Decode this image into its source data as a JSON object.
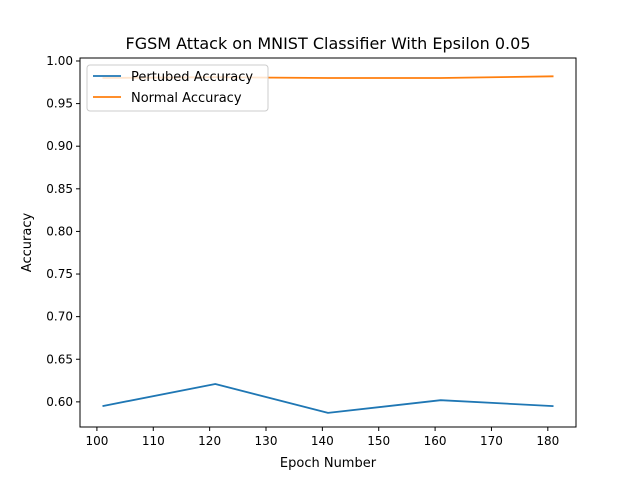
{
  "chart_data": {
    "type": "line",
    "title": "FGSM Attack on MNIST Classifier With Epsilon 0.05",
    "xlabel": "Epoch Number",
    "ylabel": "Accuracy",
    "xlim": [
      97,
      185
    ],
    "ylim": [
      0.5705,
      1.0035
    ],
    "xticks": [
      {
        "value": 100,
        "label": "100"
      },
      {
        "value": 110,
        "label": "110"
      },
      {
        "value": 120,
        "label": "120"
      },
      {
        "value": 130,
        "label": "130"
      },
      {
        "value": 140,
        "label": "140"
      },
      {
        "value": 150,
        "label": "150"
      },
      {
        "value": 160,
        "label": "160"
      },
      {
        "value": 170,
        "label": "170"
      },
      {
        "value": 180,
        "label": "180"
      }
    ],
    "yticks": [
      {
        "value": 0.6,
        "label": "0.60"
      },
      {
        "value": 0.65,
        "label": "0.65"
      },
      {
        "value": 0.7,
        "label": "0.70"
      },
      {
        "value": 0.75,
        "label": "0.75"
      },
      {
        "value": 0.8,
        "label": "0.80"
      },
      {
        "value": 0.85,
        "label": "0.85"
      },
      {
        "value": 0.9,
        "label": "0.90"
      },
      {
        "value": 0.95,
        "label": "0.95"
      },
      {
        "value": 1.0,
        "label": "1.00"
      }
    ],
    "grid": false,
    "legend_position": "top-left",
    "series": [
      {
        "name": "Pertubed Accuracy",
        "color": "#1f77b4",
        "x": [
          101,
          121,
          141,
          161,
          181
        ],
        "y": [
          0.595,
          0.621,
          0.587,
          0.602,
          0.595
        ]
      },
      {
        "name": "Normal Accuracy",
        "color": "#ff7f0e",
        "x": [
          101,
          121,
          141,
          161,
          181
        ],
        "y": [
          0.98,
          0.981,
          0.98,
          0.98,
          0.982
        ]
      }
    ]
  }
}
